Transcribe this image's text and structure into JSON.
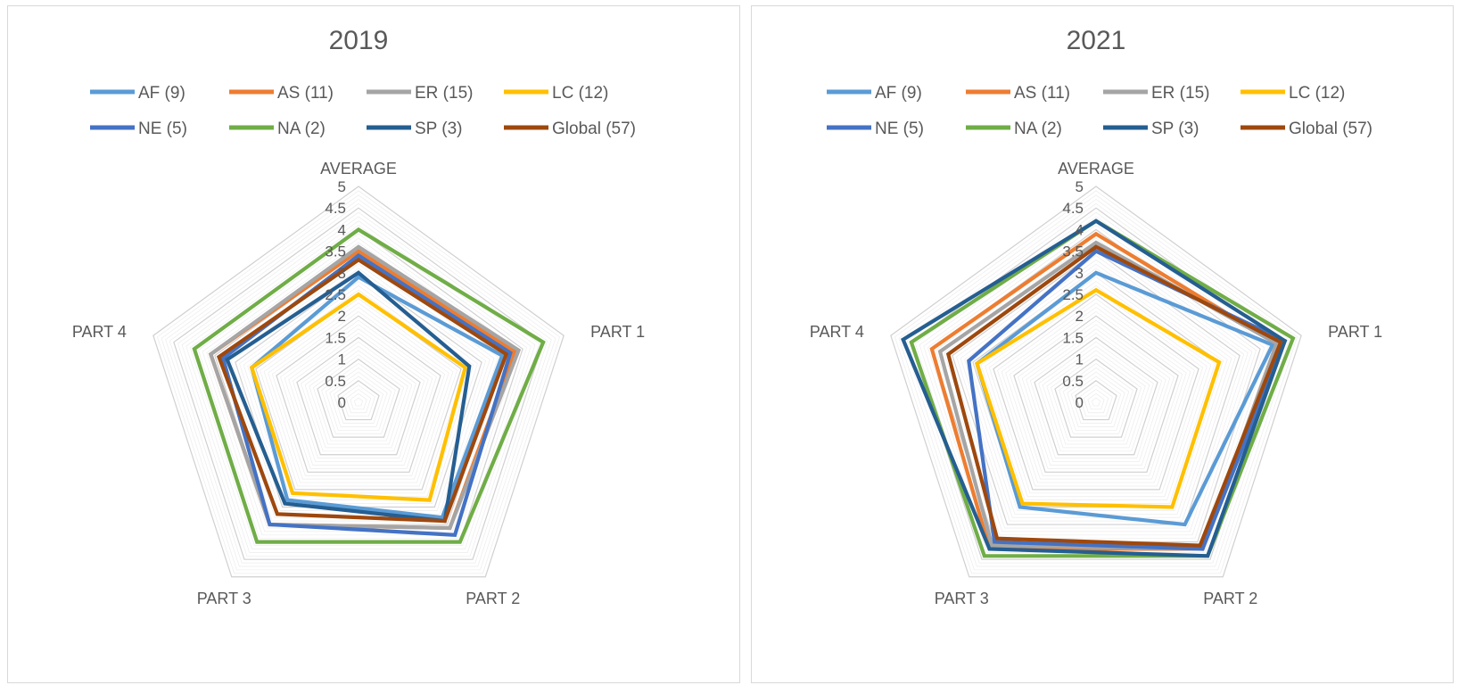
{
  "colors": {
    "AF (9)": "#5b9bd5",
    "AS (11)": "#ed7d31",
    "ER (15)": "#a5a5a5",
    "LC (12)": "#ffc000",
    "NE (5)": "#4472c4",
    "NA (2)": "#70ad47",
    "SP (3)": "#255e91",
    "Global (57)": "#9e480e"
  },
  "chart_data": [
    {
      "type": "radar",
      "title": "2019",
      "axes": [
        "AVERAGE",
        "PART 1",
        "PART 2",
        "PART 3",
        "PART 4"
      ],
      "rlim": [
        0,
        5
      ],
      "ticks": [
        "0",
        "0.5",
        "1",
        "1.5",
        "2",
        "2.5",
        "3",
        "3.5",
        "4",
        "4.5",
        "5"
      ],
      "legend": "top",
      "grid": true,
      "series": [
        {
          "name": "AF (9)",
          "values": [
            2.9,
            3.5,
            3.3,
            2.8,
            2.6
          ]
        },
        {
          "name": "AS (11)",
          "values": [
            3.5,
            3.8,
            3.6,
            3.5,
            3.6
          ]
        },
        {
          "name": "ER (15)",
          "values": [
            3.6,
            3.9,
            3.6,
            3.5,
            3.6
          ]
        },
        {
          "name": "LC (12)",
          "values": [
            2.5,
            2.6,
            2.8,
            2.6,
            2.6
          ]
        },
        {
          "name": "NE (5)",
          "values": [
            3.4,
            3.7,
            3.8,
            3.5,
            3.3
          ]
        },
        {
          "name": "NA (2)",
          "values": [
            4.0,
            4.5,
            4.0,
            4.0,
            4.0
          ]
        },
        {
          "name": "SP (3)",
          "values": [
            3.0,
            2.7,
            3.4,
            2.9,
            3.2
          ]
        },
        {
          "name": "Global (57)",
          "values": [
            3.3,
            3.6,
            3.4,
            3.2,
            3.4
          ]
        }
      ]
    },
    {
      "type": "radar",
      "title": "2021",
      "axes": [
        "AVERAGE",
        "PART 1",
        "PART 2",
        "PART 3",
        "PART 4"
      ],
      "rlim": [
        0,
        5
      ],
      "ticks": [
        "0",
        "0.5",
        "1",
        "1.5",
        "2",
        "2.5",
        "3",
        "3.5",
        "4",
        "4.5",
        "5"
      ],
      "legend": "top",
      "grid": true,
      "series": [
        {
          "name": "AF (9)",
          "values": [
            3.0,
            4.3,
            3.5,
            3.0,
            2.9
          ]
        },
        {
          "name": "AS (11)",
          "values": [
            3.9,
            4.4,
            4.2,
            4.2,
            4.0
          ]
        },
        {
          "name": "ER (15)",
          "values": [
            3.7,
            4.4,
            4.2,
            4.1,
            3.8
          ]
        },
        {
          "name": "LC (12)",
          "values": [
            2.6,
            3.0,
            3.0,
            2.9,
            2.9
          ]
        },
        {
          "name": "NE (5)",
          "values": [
            3.5,
            4.6,
            4.2,
            4.0,
            3.1
          ]
        },
        {
          "name": "NA (2)",
          "values": [
            4.2,
            4.8,
            4.4,
            4.4,
            4.5
          ]
        },
        {
          "name": "SP (3)",
          "values": [
            4.2,
            4.6,
            4.4,
            4.2,
            4.7
          ]
        },
        {
          "name": "Global (57)",
          "values": [
            3.6,
            4.5,
            4.1,
            3.9,
            3.6
          ]
        }
      ]
    }
  ]
}
